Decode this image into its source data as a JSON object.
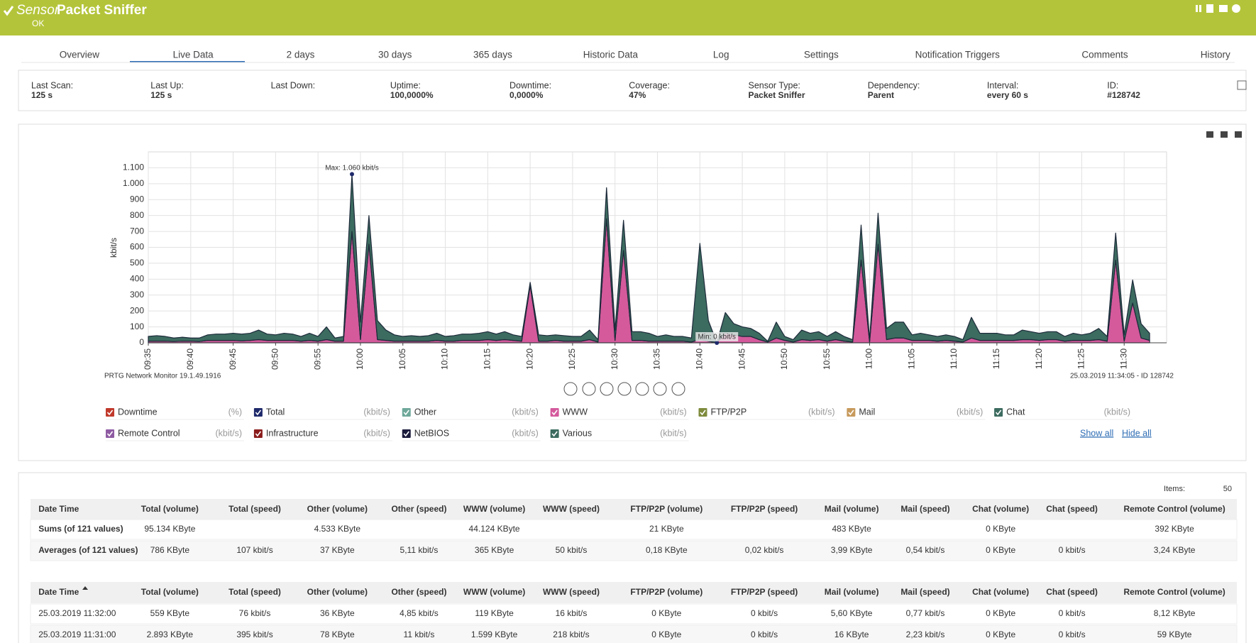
{
  "header": {
    "prefix": "Sensor",
    "title": "Packet Sniffer",
    "status": "OK"
  },
  "tabs": [
    "Overview",
    "Live Data",
    "2  days",
    "30 days",
    "365 days",
    "Historic Data",
    "Log",
    "Settings",
    "Notification Triggers",
    "Comments",
    "History"
  ],
  "info": [
    {
      "label": "Last Scan:",
      "value": "125 s"
    },
    {
      "label": "Last Up:",
      "value": "125 s"
    },
    {
      "label": "Last Down:",
      "value": null
    },
    {
      "label": "Uptime:",
      "value": "100,0000%"
    },
    {
      "label": "Downtime:",
      "value": "0,0000%"
    },
    {
      "label": "Coverage:",
      "value": "47%"
    },
    {
      "label": "Sensor Type:",
      "value": "Packet Sniffer"
    },
    {
      "label": "Dependency:",
      "value": "Parent"
    },
    {
      "label": "Interval:",
      "value": "every 60 s"
    },
    {
      "label": "ID:",
      "value": "#128742"
    }
  ],
  "chart_data": {
    "type": "area",
    "stacked": true,
    "y_label": "kbit/s",
    "grid": true,
    "max_label": "Max: 1.060 kbit/s",
    "min_label": "Min: 0 kbit/s",
    "footer_left": "PRTG Network Monitor 19.1.49.1916",
    "footer_right": "25.03.2019 11:34:05 - ID 128742",
    "ylim": [
      0,
      1200
    ],
    "yticks": [
      0,
      100,
      200,
      300,
      400,
      500,
      600,
      700,
      800,
      900,
      {
        "value": 1000,
        "label": "1.000"
      },
      {
        "value": 1100,
        "label": "1.100"
      }
    ],
    "x": [
      "09:35",
      null,
      null,
      null,
      null,
      "09:40",
      null,
      null,
      null,
      null,
      "09:45",
      null,
      null,
      null,
      null,
      "09:50",
      null,
      null,
      null,
      null,
      "09:55",
      null,
      null,
      null,
      null,
      "10:00",
      null,
      null,
      null,
      null,
      "10:05",
      null,
      null,
      null,
      null,
      "10:10",
      null,
      null,
      null,
      null,
      "10:15",
      null,
      null,
      null,
      null,
      "10:20",
      null,
      null,
      null,
      null,
      "10:25",
      null,
      null,
      null,
      null,
      "10:30",
      null,
      null,
      null,
      null,
      "10:35",
      null,
      null,
      null,
      null,
      "10:40",
      null,
      null,
      null,
      null,
      "10:45",
      null,
      null,
      null,
      null,
      "10:50",
      null,
      null,
      null,
      null,
      "10:55",
      null,
      null,
      null,
      null,
      "11:00",
      null,
      null,
      null,
      null,
      "11:05",
      null,
      null,
      null,
      null,
      "11:10",
      null,
      null,
      null,
      null,
      "11:15",
      null,
      null,
      null,
      null,
      "11:20",
      null,
      null,
      null,
      null,
      "11:25",
      null,
      null,
      null,
      null,
      "11:30",
      null,
      null,
      null
    ],
    "series": [
      {
        "name": "Downtime",
        "unit": "(%)",
        "color": "#c0392b"
      },
      {
        "name": "Total",
        "unit": "(kbit/s)",
        "color": "#1f2a6b"
      },
      {
        "name": "Other",
        "unit": "(kbit/s)",
        "color": "#6fa89a"
      },
      {
        "name": "WWW",
        "unit": "(kbit/s)",
        "color": "#d45a9c",
        "values": [
          10,
          10,
          10,
          8,
          10,
          10,
          8,
          15,
          15,
          15,
          15,
          12,
          15,
          20,
          15,
          15,
          15,
          15,
          10,
          15,
          10,
          20,
          10,
          10,
          700,
          20,
          620,
          20,
          15,
          10,
          10,
          10,
          10,
          10,
          15,
          10,
          10,
          15,
          15,
          15,
          20,
          15,
          20,
          15,
          10,
          360,
          10,
          10,
          15,
          10,
          10,
          10,
          20,
          5,
          780,
          15,
          580,
          15,
          15,
          10,
          10,
          10,
          10,
          10,
          5,
          20,
          10,
          0,
          60,
          50,
          40,
          40,
          20,
          5,
          30,
          15,
          5,
          20,
          15,
          20,
          10,
          20,
          10,
          5,
          520,
          5,
          620,
          20,
          30,
          30,
          15,
          15,
          15,
          10,
          15,
          10,
          5,
          30,
          15,
          15,
          15,
          15,
          15,
          20,
          20,
          15,
          20,
          20,
          10,
          15,
          15,
          15,
          20,
          10,
          520,
          10,
          250,
          30,
          15
        ]
      },
      {
        "name": "FTP/P2P",
        "unit": "(kbit/s)",
        "color": "#7d8b3c"
      },
      {
        "name": "Mail",
        "unit": "(kbit/s)",
        "color": "#c79a5c"
      },
      {
        "name": "Chat",
        "unit": "(kbit/s)",
        "color": "#3c6b5f"
      },
      {
        "name": "Remote Control",
        "unit": "(kbit/s)",
        "color": "#8e5ba2"
      },
      {
        "name": "Infrastructure",
        "unit": "(kbit/s)",
        "color": "#8b1c1c"
      },
      {
        "name": "NetBIOS",
        "unit": "(kbit/s)",
        "color": "#1b1b3b"
      },
      {
        "name": "Various",
        "unit": "(kbit/s)",
        "color": "#3c6b5f",
        "values": [
          30,
          35,
          30,
          22,
          25,
          20,
          22,
          35,
          40,
          40,
          45,
          43,
          45,
          60,
          40,
          35,
          45,
          40,
          30,
          45,
          30,
          80,
          20,
          30,
          360,
          110,
          180,
          120,
          65,
          40,
          30,
          35,
          30,
          35,
          45,
          30,
          35,
          40,
          40,
          45,
          50,
          40,
          50,
          35,
          30,
          20,
          40,
          35,
          35,
          35,
          30,
          30,
          60,
          15,
          195,
          65,
          190,
          55,
          55,
          50,
          30,
          40,
          30,
          30,
          25,
          605,
          130,
          0,
          130,
          70,
          60,
          50,
          40,
          5,
          100,
          25,
          15,
          60,
          45,
          50,
          30,
          50,
          30,
          15,
          220,
          15,
          195,
          70,
          100,
          100,
          35,
          45,
          35,
          30,
          35,
          30,
          15,
          130,
          45,
          45,
          45,
          35,
          35,
          60,
          50,
          45,
          50,
          50,
          30,
          45,
          35,
          45,
          70,
          30,
          170,
          40,
          145,
          90,
          45
        ]
      }
    ],
    "legend_links": [
      "Show all",
      "Hide all"
    ]
  },
  "items": {
    "label": "Items:",
    "value": "50"
  },
  "summary": {
    "columns": [
      "Date Time",
      "Total (volume)",
      "Total (speed)",
      "Other (volume)",
      "Other (speed)",
      "WWW (volume)",
      "WWW (speed)",
      "FTP/P2P (volume)",
      "FTP/P2P (speed)",
      "Mail (volume)",
      "Mail (speed)",
      "Chat (volume)",
      "Chat (speed)",
      "Remote Control (volume)"
    ],
    "rows": [
      [
        "Sums (of 121 values)",
        "95.134 KByte",
        null,
        "4.533 KByte",
        null,
        "44.124 KByte",
        null,
        "21 KByte",
        null,
        "483 KByte",
        null,
        "0 KByte",
        null,
        "392 KByte"
      ],
      [
        "Averages (of 121 values)",
        "786 KByte",
        "107 kbit/s",
        "37 KByte",
        "5,11 kbit/s",
        "365 KByte",
        "50 kbit/s",
        "0,18 KByte",
        "0,02 kbit/s",
        "3,99 KByte",
        "0,54 kbit/s",
        "0 KByte",
        "0 kbit/s",
        "3,24 KByte"
      ]
    ]
  },
  "table": {
    "columns": [
      "Date Time",
      "Total (volume)",
      "Total (speed)",
      "Other (volume)",
      "Other (speed)",
      "WWW (volume)",
      "WWW (speed)",
      "FTP/P2P (volume)",
      "FTP/P2P (speed)",
      "Mail (volume)",
      "Mail (speed)",
      "Chat (volume)",
      "Chat (speed)",
      "Remote Control (volume)"
    ],
    "rows": [
      [
        "25.03.2019 11:32:00",
        "559 KByte",
        "76 kbit/s",
        "36 KByte",
        "4,85 kbit/s",
        "119 KByte",
        "16 kbit/s",
        "0 KByte",
        "0 kbit/s",
        "5,60 KByte",
        "0,77 kbit/s",
        "0 KByte",
        "0 kbit/s",
        "8,12 KByte"
      ],
      [
        "25.03.2019 11:31:00",
        "2.893 KByte",
        "395 kbit/s",
        "78 KByte",
        "11 kbit/s",
        "1.599 KByte",
        "218 kbit/s",
        "0 KByte",
        "0 kbit/s",
        "16 KByte",
        "2,23 kbit/s",
        "0 KByte",
        "0 kbit/s",
        "59 KByte"
      ]
    ]
  }
}
